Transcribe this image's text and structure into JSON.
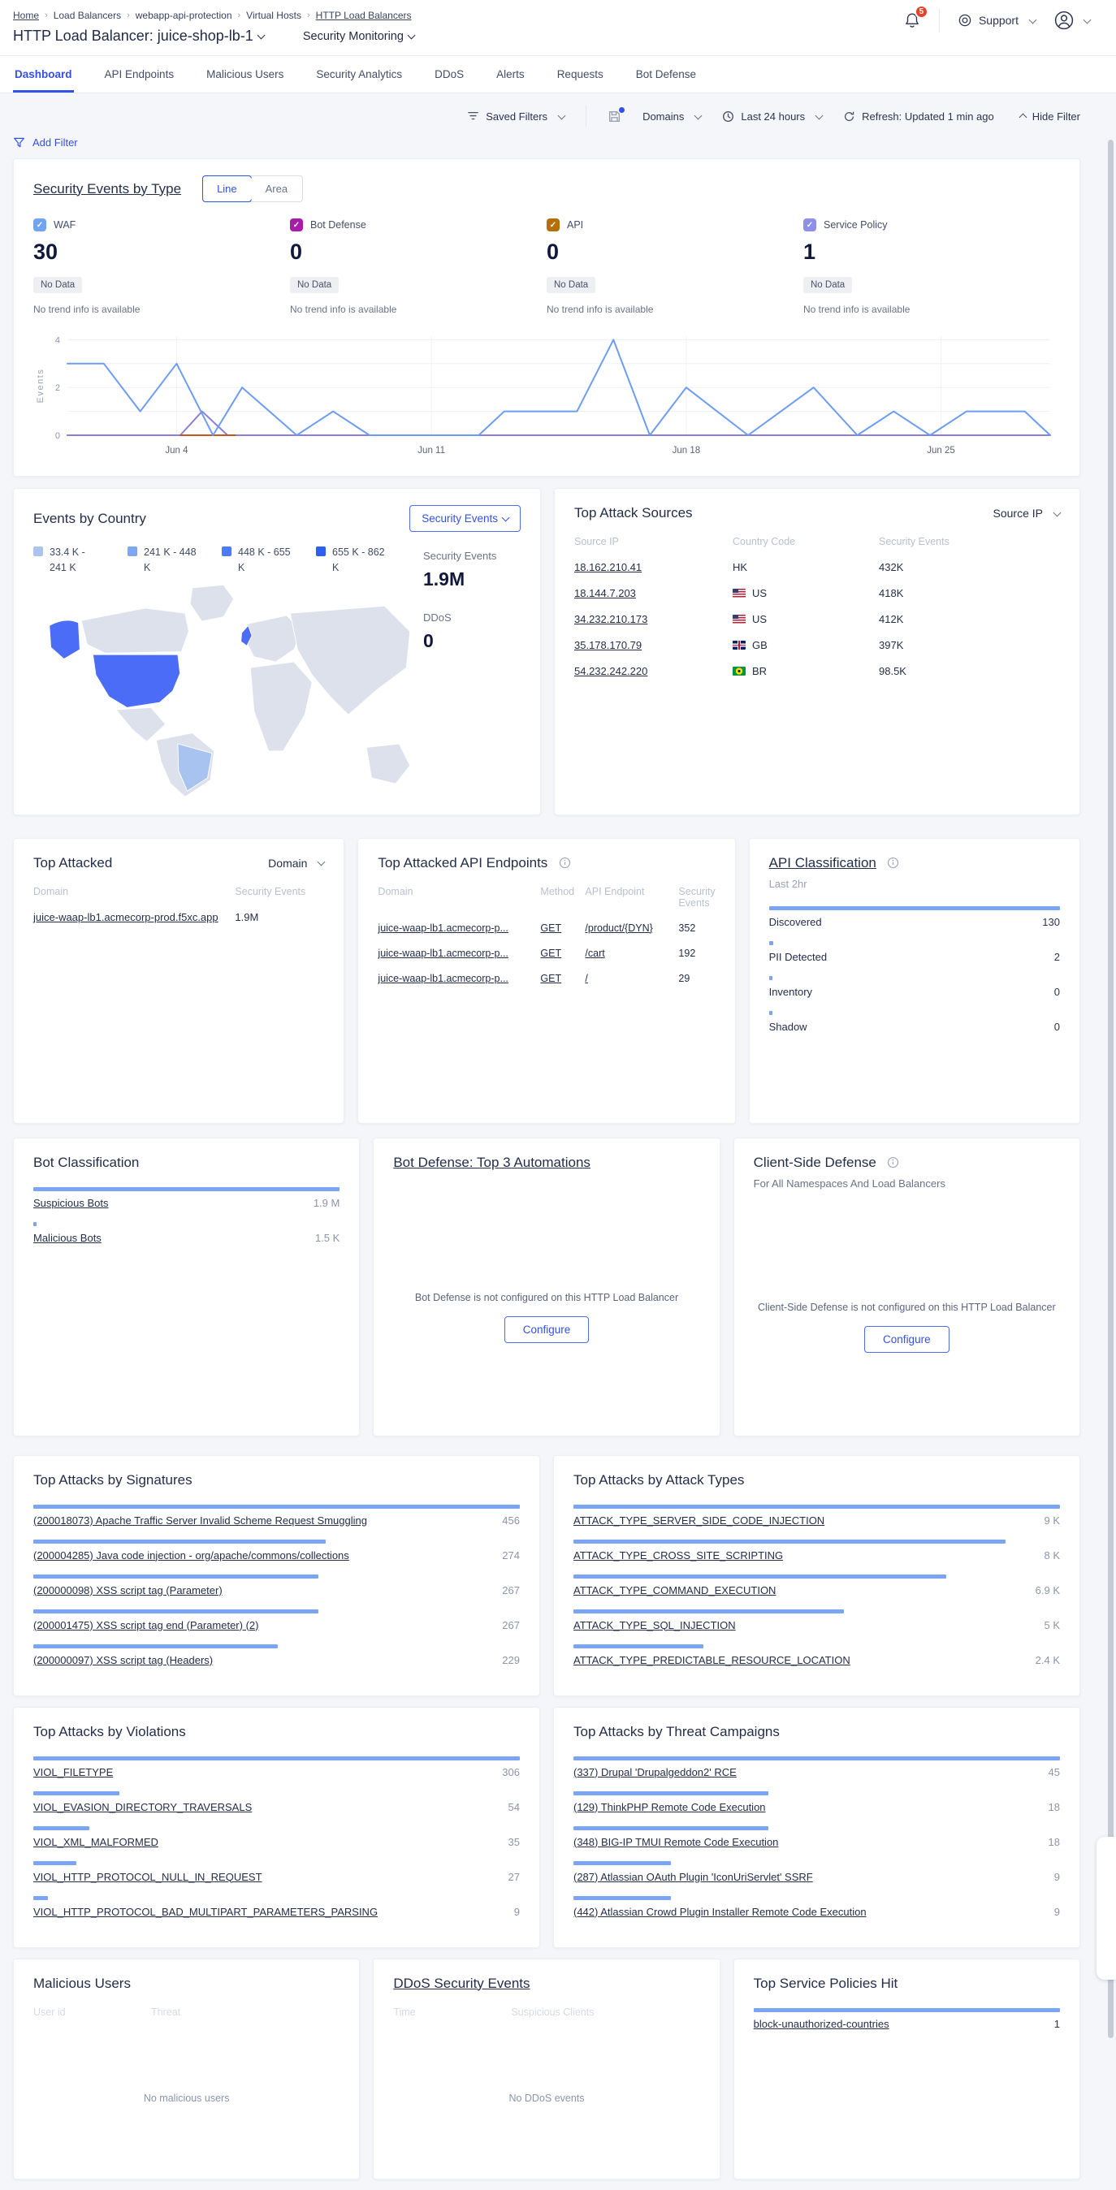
{
  "header": {
    "breadcrumb": [
      "Home",
      "Load Balancers",
      "webapp-api-protection",
      "Virtual Hosts",
      "HTTP Load Balancers"
    ],
    "title": "HTTP Load Balancer: juice-shop-lb-1",
    "subnav": "Security Monitoring",
    "notification_count": "5",
    "support_label": "Support"
  },
  "tabs": [
    {
      "label": "Dashboard",
      "active": true
    },
    {
      "label": "API Endpoints",
      "active": false
    },
    {
      "label": "Malicious Users",
      "active": false
    },
    {
      "label": "Security Analytics",
      "active": false
    },
    {
      "label": "DDoS",
      "active": false
    },
    {
      "label": "Alerts",
      "active": false
    },
    {
      "label": "Requests",
      "active": false
    },
    {
      "label": "Bot Defense",
      "active": false
    }
  ],
  "toolbar": {
    "saved_filters": "Saved Filters",
    "domains": "Domains",
    "time_range": "Last 24 hours",
    "refresh": "Refresh: Updated 1 min ago",
    "hide_filter": "Hide Filter"
  },
  "add_filter": "Add Filter",
  "security_events_card": {
    "title": "Security Events by Type",
    "toggle": [
      "Line",
      "Area"
    ],
    "active_toggle": "Line",
    "stats": [
      {
        "label": "WAF",
        "value": "30",
        "color": "#71a3f6",
        "badge": "No Data",
        "note": "No trend info is available"
      },
      {
        "label": "Bot Defense",
        "value": "0",
        "color": "#a81ca8",
        "badge": "No Data",
        "note": "No trend info is available"
      },
      {
        "label": "API",
        "value": "0",
        "color": "#b57005",
        "badge": "No Data",
        "note": "No trend info is available"
      },
      {
        "label": "Service Policy",
        "value": "1",
        "color": "#8d8fe8",
        "badge": "No Data",
        "note": "No trend info is available"
      }
    ],
    "chart_data": {
      "type": "line",
      "ylabel": "Events",
      "yticks": [
        0,
        2,
        4
      ],
      "ygrid": [
        0,
        1,
        2,
        3,
        4
      ],
      "ylim": [
        0,
        4.15
      ],
      "xlim": [
        1,
        28
      ],
      "xticks": [
        {
          "x": 4,
          "label": "Jun 4"
        },
        {
          "x": 11,
          "label": "Jun 11"
        },
        {
          "x": 18,
          "label": "Jun 18"
        },
        {
          "x": 25,
          "label": "Jun 25"
        }
      ],
      "series": [
        {
          "name": "Bot Defense",
          "color": "#a81ca8",
          "points": [
            [
              1,
              0
            ],
            [
              28,
              0
            ]
          ]
        },
        {
          "name": "Service Policy",
          "color": "#8b7fd6",
          "points": [
            [
              1,
              0
            ],
            [
              4.1,
              0
            ],
            [
              4.7,
              1
            ],
            [
              5.4,
              0
            ],
            [
              28,
              0
            ]
          ]
        },
        {
          "name": "API",
          "color": "#c05621",
          "points": [
            [
              4.1,
              0
            ],
            [
              5.6,
              0
            ]
          ]
        },
        {
          "name": "WAF",
          "color": "#6d9cf3",
          "points": [
            [
              1,
              3
            ],
            [
              2,
              3
            ],
            [
              3,
              1
            ],
            [
              4,
              3
            ],
            [
              5,
              0
            ],
            [
              5.8,
              2
            ],
            [
              7.3,
              0
            ],
            [
              8.3,
              1
            ],
            [
              9.3,
              0
            ],
            [
              12.3,
              0
            ],
            [
              13,
              1
            ],
            [
              15,
              1
            ],
            [
              16,
              4
            ],
            [
              17,
              0
            ],
            [
              18,
              2
            ],
            [
              19.7,
              0
            ],
            [
              21.5,
              2
            ],
            [
              22.7,
              0
            ],
            [
              23.7,
              1
            ],
            [
              24.7,
              0
            ],
            [
              25.7,
              1
            ],
            [
              27.3,
              1
            ],
            [
              28,
              0
            ]
          ]
        }
      ]
    }
  },
  "events_by_country": {
    "title": "Events by Country",
    "selector": "Security Events",
    "legend": [
      {
        "range": "33.4 K - 241 K",
        "color": "#aac4ee"
      },
      {
        "range": "241 K - 448 K",
        "color": "#7fa6f2"
      },
      {
        "range": "448 K - 655 K",
        "color": "#4b7bf5"
      },
      {
        "range": "655 K - 862 K",
        "color": "#2f5ef3"
      }
    ],
    "stats": [
      {
        "label": "Security Events",
        "value": "1.9M"
      },
      {
        "label": "DDoS",
        "value": "0"
      }
    ],
    "map_colors": {
      "land": "#dce1ec",
      "us": "#4a6cf7",
      "gb": "#4a6cf7",
      "br": "#a9c3f0"
    }
  },
  "top_attack_sources": {
    "title": "Top Attack Sources",
    "selector": "Source IP",
    "columns": [
      "Source IP",
      "Country Code",
      "Security Events"
    ],
    "rows": [
      {
        "ip": "18.162.210.41",
        "flag": null,
        "country": "HK",
        "events": "432K"
      },
      {
        "ip": "18.144.7.203",
        "flag": "flag-us",
        "country": "US",
        "events": "418K"
      },
      {
        "ip": "34.232.210.173",
        "flag": "flag-us",
        "country": "US",
        "events": "412K"
      },
      {
        "ip": "35.178.170.79",
        "flag": "flag-gb",
        "country": "GB",
        "events": "397K"
      },
      {
        "ip": "54.232.242.220",
        "flag": "flag-br",
        "country": "BR",
        "events": "98.5K"
      }
    ]
  },
  "top_attacked": {
    "title": "Top Attacked",
    "selector": "Domain",
    "columns": [
      "Domain",
      "Security Events"
    ],
    "rows": [
      {
        "domain": "juice-waap-lb1.acmecorp-prod.f5xc.app",
        "events": "1.9M"
      }
    ]
  },
  "top_attacked_endpoints": {
    "title": "Top Attacked API Endpoints",
    "columns": [
      "Domain",
      "Method",
      "API Endpoint",
      "Security Events"
    ],
    "rows": [
      {
        "domain": "juice-waap-lb1.acmecorp-p...",
        "method": "GET",
        "endpoint": "/product/{DYN}",
        "events": "352"
      },
      {
        "domain": "juice-waap-lb1.acmecorp-p...",
        "method": "GET",
        "endpoint": "/cart",
        "events": "192"
      },
      {
        "domain": "juice-waap-lb1.acmecorp-p...",
        "method": "GET",
        "endpoint": "/",
        "events": "29"
      }
    ]
  },
  "api_classification": {
    "title": "API Classification",
    "subtitle": "Last 2hr",
    "links": false,
    "items": [
      {
        "label": "Discovered",
        "value": 130,
        "display": "130"
      },
      {
        "label": "PII Detected",
        "value": 2,
        "display": "2"
      },
      {
        "label": "Inventory",
        "value": 0,
        "display": "0"
      },
      {
        "label": "Shadow",
        "value": 0,
        "display": "0"
      }
    ]
  },
  "bot_classification": {
    "title": "Bot Classification",
    "links": true,
    "items": [
      {
        "label": "Suspicious Bots",
        "value": 1900000,
        "display": "1.9 M"
      },
      {
        "label": "Malicious Bots",
        "value": 1500,
        "display": "1.5 K"
      }
    ]
  },
  "bot_defense": {
    "title": "Bot Defense: Top 3 Automations",
    "empty": "Bot Defense is not configured on this HTTP Load Balancer",
    "button": "Configure"
  },
  "client_side_defense": {
    "title": "Client-Side Defense",
    "subtitle": "For All Namespaces And Load Balancers",
    "empty": "Client-Side Defense is not configured on this HTTP Load Balancer",
    "button": "Configure"
  },
  "top_signatures": {
    "title": "Top Attacks by Signatures",
    "links": true,
    "items": [
      {
        "label": "(200018073) Apache Traffic Server Invalid Scheme Request Smuggling",
        "value": 456,
        "display": "456"
      },
      {
        "label": "(200004285) Java code injection - org/apache/commons/collections",
        "value": 274,
        "display": "274"
      },
      {
        "label": "(200000098) XSS script tag (Parameter)",
        "value": 267,
        "display": "267"
      },
      {
        "label": "(200001475) XSS script tag end (Parameter) (2)",
        "value": 267,
        "display": "267"
      },
      {
        "label": "(200000097) XSS script tag (Headers)",
        "value": 229,
        "display": "229"
      }
    ]
  },
  "top_attack_types": {
    "title": "Top Attacks by Attack Types",
    "links": true,
    "items": [
      {
        "label": "ATTACK_TYPE_SERVER_SIDE_CODE_INJECTION",
        "value": 9000,
        "display": "9 K"
      },
      {
        "label": "ATTACK_TYPE_CROSS_SITE_SCRIPTING",
        "value": 8000,
        "display": "8 K"
      },
      {
        "label": "ATTACK_TYPE_COMMAND_EXECUTION",
        "value": 6900,
        "display": "6.9 K"
      },
      {
        "label": "ATTACK_TYPE_SQL_INJECTION",
        "value": 5000,
        "display": "5 K"
      },
      {
        "label": "ATTACK_TYPE_PREDICTABLE_RESOURCE_LOCATION",
        "value": 2400,
        "display": "2.4 K"
      }
    ]
  },
  "top_violations": {
    "title": "Top Attacks by Violations",
    "links": true,
    "items": [
      {
        "label": "VIOL_FILETYPE",
        "value": 306,
        "display": "306"
      },
      {
        "label": "VIOL_EVASION_DIRECTORY_TRAVERSALS",
        "value": 54,
        "display": "54"
      },
      {
        "label": "VIOL_XML_MALFORMED",
        "value": 35,
        "display": "35"
      },
      {
        "label": "VIOL_HTTP_PROTOCOL_NULL_IN_REQUEST",
        "value": 27,
        "display": "27"
      },
      {
        "label": "VIOL_HTTP_PROTOCOL_BAD_MULTIPART_PARAMETERS_PARSING",
        "value": 9,
        "display": "9"
      }
    ]
  },
  "top_threat_campaigns": {
    "title": "Top Attacks by Threat Campaigns",
    "links": true,
    "items": [
      {
        "label": "(337) Drupal 'Drupalgeddon2' RCE",
        "value": 45,
        "display": "45"
      },
      {
        "label": "(129) ThinkPHP Remote Code Execution",
        "value": 18,
        "display": "18"
      },
      {
        "label": "(348) BIG-IP TMUI Remote Code Execution",
        "value": 18,
        "display": "18"
      },
      {
        "label": "(287) Atlassian OAuth Plugin 'IconUriServlet' SSRF",
        "value": 9,
        "display": "9"
      },
      {
        "label": "(442) Atlassian Crowd Plugin Installer Remote Code Execution",
        "value": 9,
        "display": "9"
      }
    ]
  },
  "malicious_users": {
    "title": "Malicious Users",
    "columns": [
      "User id",
      "Threat"
    ],
    "empty": "No malicious users"
  },
  "ddos_events": {
    "title": "DDoS Security Events",
    "columns": [
      "Time",
      "Suspicious Clients"
    ],
    "empty": "No DDoS events"
  },
  "top_service_policies": {
    "title": "Top Service Policies Hit",
    "links": true,
    "items": [
      {
        "label": "block-unauthorized-countries",
        "value": 1,
        "display": "1"
      }
    ]
  }
}
